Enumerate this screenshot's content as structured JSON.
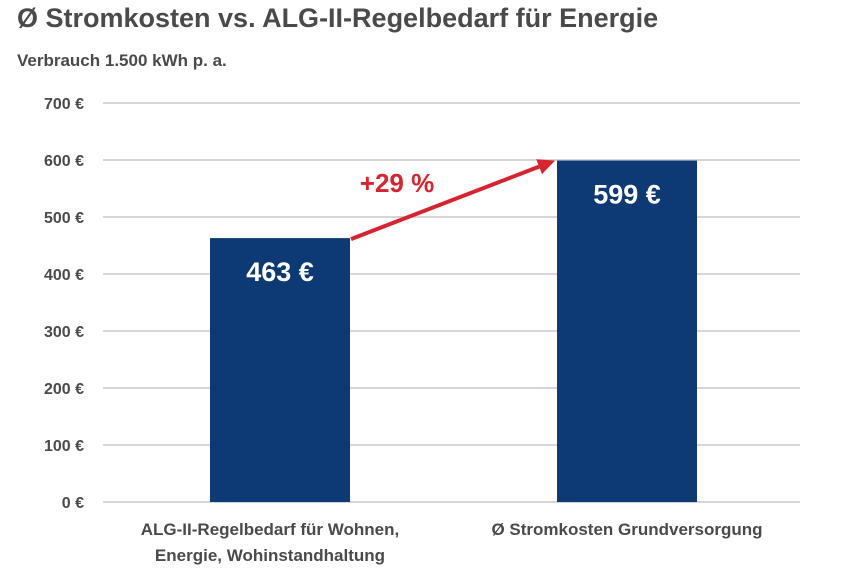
{
  "chart_data": {
    "type": "bar",
    "title": "Ø Stromkosten vs. ALG-II-Regelbedarf für Energie",
    "subtitle": "Verbrauch 1.500 kWh p. a.",
    "categories": [
      [
        "ALG-II-Regelbedarf für Wohnen,",
        "Energie, Wohinstandhaltung"
      ],
      [
        "Ø Stromkosten Grundversorgung"
      ]
    ],
    "values": [
      463,
      599
    ],
    "value_labels": [
      "463 €",
      "599 €"
    ],
    "ylim": [
      0,
      700
    ],
    "yticks": [
      0,
      100,
      200,
      300,
      400,
      500,
      600,
      700
    ],
    "ytick_labels": [
      "0 €",
      "100 €",
      "200 €",
      "300 €",
      "400 €",
      "500 €",
      "600 €",
      "700 €"
    ],
    "grid": true,
    "annotation": {
      "text": "+29 %",
      "arrow_from": "bar-1-top",
      "arrow_to": "bar-2-top"
    },
    "colors": {
      "bar": "#0d3a74",
      "annotation": "#d9232e",
      "text": "#4a4a4a",
      "grid": "#c8c8c8"
    }
  }
}
